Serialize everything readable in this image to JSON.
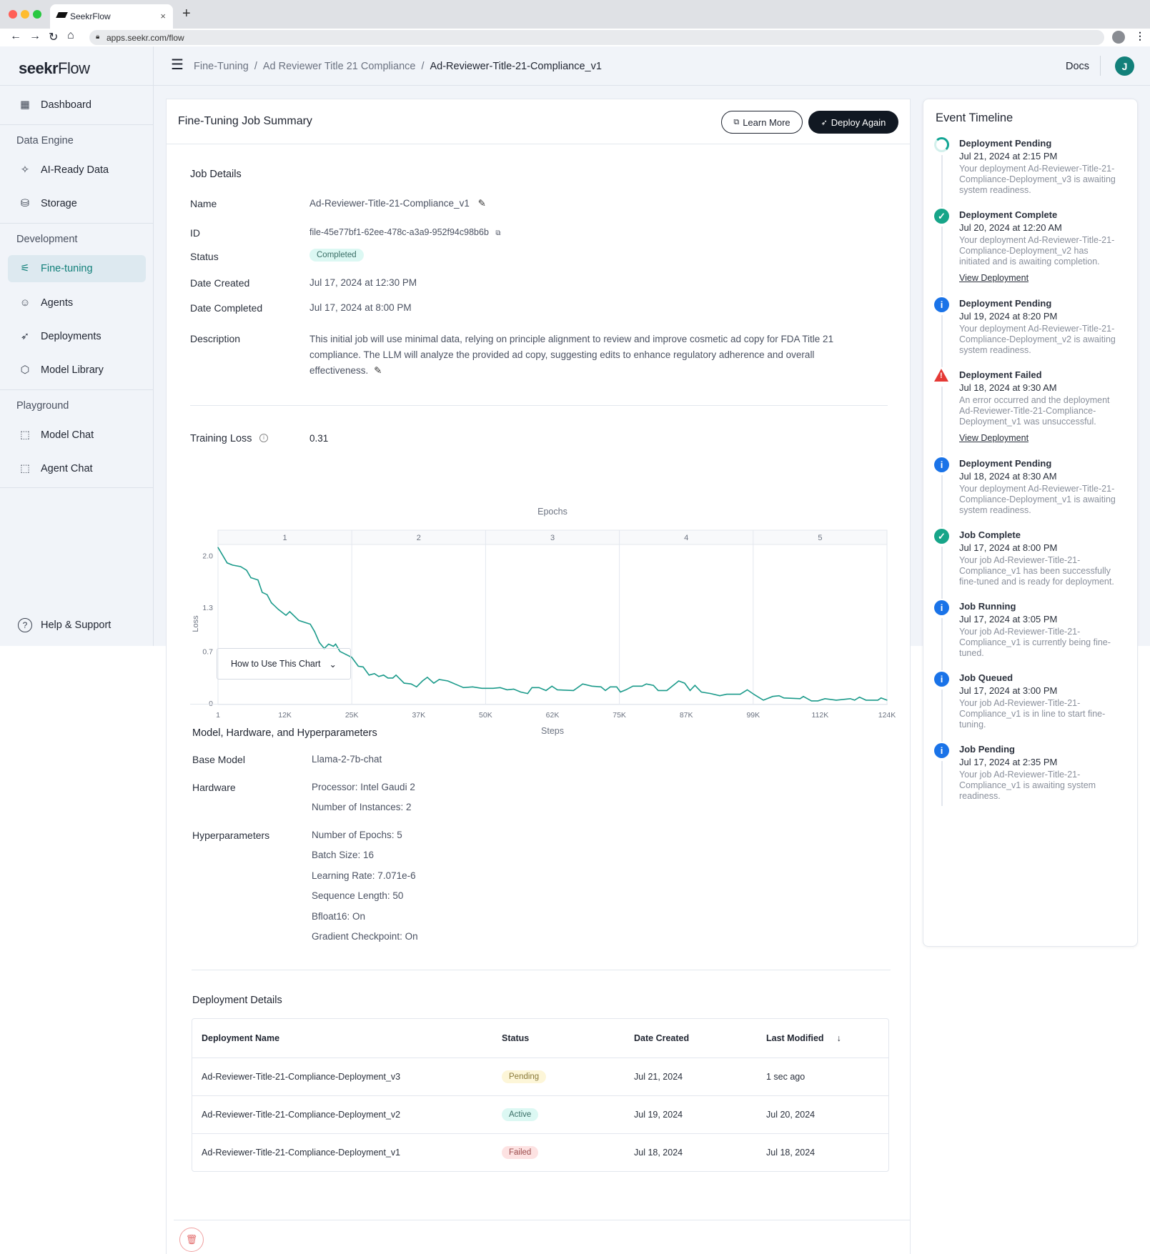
{
  "browser": {
    "tab_title": "SeekrFlow",
    "url": "apps.seekr.com/flow"
  },
  "brand": {
    "logo_bold": "seekr",
    "logo_light": "Flow"
  },
  "topbar": {
    "breadcrumb": [
      "Fine-Tuning",
      "Ad Reviewer Title 21 Compliance",
      "Ad-Reviewer-Title-21-Compliance_v1"
    ],
    "separator": "/",
    "docs": "Docs",
    "avatar": "J"
  },
  "sidebar": {
    "dashboard": "Dashboard",
    "sections": [
      {
        "title": "Data Engine",
        "items": [
          "AI-Ready Data",
          "Storage"
        ]
      },
      {
        "title": "Development",
        "items": [
          "Fine-tuning",
          "Agents",
          "Deployments",
          "Model Library"
        ]
      },
      {
        "title": "Playground",
        "items": [
          "Model Chat",
          "Agent Chat"
        ]
      }
    ],
    "help": "Help & Support"
  },
  "card": {
    "title": "Fine-Tuning Job Summary",
    "learn_more": "Learn More",
    "deploy_again": "Deploy Again"
  },
  "job": {
    "heading": "Job Details",
    "labels": {
      "name": "Name",
      "id": "ID",
      "status": "Status",
      "created": "Date Created",
      "completed": "Date Completed",
      "description": "Description"
    },
    "name": "Ad-Reviewer-Title-21-Compliance_v1",
    "id": "file-45e77bf1-62ee-478c-a3a9-952f94c98b6b",
    "status": "Completed",
    "created": "Jul 17, 2024 at 12:30 PM",
    "completed": "Jul 17, 2024 at 8:00 PM",
    "description": "This initial job will use minimal data, relying on principle alignment to review and improve cosmetic ad copy for FDA Title 21 compliance. The LLM will analyze the provided ad copy, suggesting edits to enhance regulatory adherence and overall effectiveness."
  },
  "training": {
    "label": "Training Loss",
    "value": "0.31",
    "how_to": "How to Use This Chart"
  },
  "chart_data": {
    "type": "line",
    "title": "Epochs",
    "xlabel": "Steps",
    "ylabel": "Loss",
    "color": "#1a9a8a",
    "epochs": [
      "1",
      "2",
      "3",
      "4",
      "5"
    ],
    "x_ticks": [
      "1",
      "12K",
      "25K",
      "37K",
      "50K",
      "62K",
      "75K",
      "87K",
      "99K",
      "112K",
      "124K"
    ],
    "y_ticks": [
      "0",
      "0.7",
      "1.3",
      "2.0"
    ],
    "xlim": [
      0,
      124
    ],
    "ylim": [
      0,
      2.15
    ],
    "steps_k": [
      0,
      1.7,
      2.7,
      4.2,
      5.3,
      6.1,
      7.4,
      8.2,
      9.1,
      9.9,
      11.2,
      12.6,
      13.3,
      15,
      17.1,
      17.9,
      18.8,
      19.7,
      20.5,
      21.4,
      21.8,
      22.6,
      24.8,
      26,
      26.9,
      28,
      29,
      29.8,
      30.7,
      31.5,
      32.4,
      33,
      34.5,
      35.8,
      36.8,
      37.9,
      38.8,
      40,
      41,
      42.6,
      43.9,
      45.5,
      47.2,
      48.9,
      51,
      52.3,
      53.6,
      54.8,
      56.1,
      57.4,
      58.2,
      59.5,
      60.8,
      61.9,
      62.9,
      65.9,
      67.6,
      69.3,
      71,
      71.8,
      72.7,
      73.9,
      74.6,
      75.6,
      76.9,
      78.6,
      79.4,
      80.7,
      81.6,
      83.2,
      85.4,
      86.5,
      87.5,
      88.4,
      89.6,
      91.3,
      93,
      94.3,
      96.8,
      98.1,
      99.5,
      101.1,
      102.8,
      104,
      104.9,
      107.9,
      108.5,
      110,
      111.2,
      112.5,
      114.6,
      117.2,
      118,
      118.9,
      120.1,
      122.3,
      122.9,
      124
    ],
    "loss": [
      2.11,
      1.9,
      1.87,
      1.85,
      1.8,
      1.7,
      1.67,
      1.5,
      1.47,
      1.36,
      1.27,
      1.19,
      1.24,
      1.12,
      1.07,
      0.97,
      0.82,
      0.74,
      0.8,
      0.77,
      0.8,
      0.7,
      0.62,
      0.5,
      0.49,
      0.38,
      0.4,
      0.36,
      0.38,
      0.34,
      0.34,
      0.38,
      0.27,
      0.26,
      0.22,
      0.3,
      0.35,
      0.27,
      0.32,
      0.3,
      0.26,
      0.21,
      0.22,
      0.2,
      0.2,
      0.21,
      0.18,
      0.19,
      0.15,
      0.13,
      0.21,
      0.21,
      0.17,
      0.23,
      0.18,
      0.17,
      0.26,
      0.23,
      0.22,
      0.17,
      0.22,
      0.22,
      0.15,
      0.18,
      0.23,
      0.23,
      0.26,
      0.24,
      0.17,
      0.17,
      0.3,
      0.27,
      0.17,
      0.24,
      0.15,
      0.13,
      0.1,
      0.12,
      0.12,
      0.18,
      0.11,
      0.04,
      0.09,
      0.1,
      0.07,
      0.06,
      0.09,
      0.03,
      0.03,
      0.06,
      0.04,
      0.06,
      0.04,
      0.08,
      0.04,
      0.04,
      0.07,
      0.04
    ]
  },
  "model": {
    "heading": "Model, Hardware, and Hyperparameters",
    "base_label": "Base Model",
    "base": "Llama-2-7b-chat",
    "hw_label": "Hardware",
    "hardware": [
      "Processor: Intel Gaudi 2",
      "Number of Instances: 2"
    ],
    "hp_label": "Hyperparameters",
    "hyper": [
      "Number of Epochs: 5",
      "Batch Size: 16",
      "Learning Rate: 7.071e-6",
      "Sequence Length: 50",
      "Bfloat16: On",
      "Gradient Checkpoint: On"
    ]
  },
  "deployments": {
    "heading": "Deployment Details",
    "columns": [
      "Deployment Name",
      "Status",
      "Date Created",
      "Last Modified"
    ],
    "rows": [
      {
        "name": "Ad-Reviewer-Title-21-Compliance-Deployment_v3",
        "status": "Pending",
        "created": "Jul 21, 2024",
        "modified": "1 sec ago"
      },
      {
        "name": "Ad-Reviewer-Title-21-Compliance-Deployment_v2",
        "status": "Active",
        "created": "Jul 19, 2024",
        "modified": "Jul 20, 2024"
      },
      {
        "name": "Ad-Reviewer-Title-21-Compliance-Deployment_v1",
        "status": "Failed",
        "created": "Jul 18, 2024",
        "modified": "Jul 18, 2024"
      }
    ]
  },
  "timeline": {
    "title": "Event Timeline",
    "events": [
      {
        "type": "pending",
        "title": "Deployment Pending",
        "date": "Jul 21, 2024 at 2:15 PM",
        "text": "Your deployment Ad-Reviewer-Title-21-Compliance-Deployment_v3 is awaiting system readiness."
      },
      {
        "type": "success",
        "title": "Deployment Complete",
        "date": "Jul 20, 2024 at 12:20 AM",
        "text": "Your deployment Ad-Reviewer-Title-21-Compliance-Deployment_v2 has initiated and is awaiting completion.",
        "link": "View Deployment"
      },
      {
        "type": "info",
        "title": "Deployment Pending",
        "date": "Jul 19, 2024 at 8:20 PM",
        "text": "Your deployment Ad-Reviewer-Title-21-Compliance-Deployment_v2 is awaiting system readiness."
      },
      {
        "type": "error",
        "title": "Deployment Failed",
        "date": "Jul 18, 2024 at 9:30 AM",
        "text": "An error occurred and the deployment Ad-Reviewer-Title-21-Compliance-Deployment_v1 was unsuccessful.",
        "link": "View Deployment"
      },
      {
        "type": "info",
        "title": "Deployment Pending",
        "date": "Jul 18, 2024 at 8:30 AM",
        "text": "Your deployment Ad-Reviewer-Title-21-Compliance-Deployment_v1 is awaiting system readiness."
      },
      {
        "type": "success",
        "title": "Job Complete",
        "date": "Jul 17, 2024 at 8:00 PM",
        "text": "Your job Ad-Reviewer-Title-21-Compliance_v1 has been successfully fine-tuned and is ready for deployment."
      },
      {
        "type": "info",
        "title": "Job Running",
        "date": "Jul 17, 2024 at 3:05 PM",
        "text": "Your job Ad-Reviewer-Title-21-Compliance_v1 is currently being fine-tuned."
      },
      {
        "type": "info",
        "title": "Job Queued",
        "date": "Jul 17, 2024 at 3:00 PM",
        "text": "Your job Ad-Reviewer-Title-21-Compliance_v1 is in line to start fine-tuning."
      },
      {
        "type": "info",
        "title": "Job Pending",
        "date": "Jul 17, 2024 at 2:35 PM",
        "text": "Your job Ad-Reviewer-Title-21-Compliance_v1 is awaiting system readiness."
      }
    ]
  },
  "colors": {
    "accent": "#12807a",
    "success": "#17a589",
    "info": "#1a73e8",
    "error": "#e53935",
    "dark": "#111822"
  }
}
